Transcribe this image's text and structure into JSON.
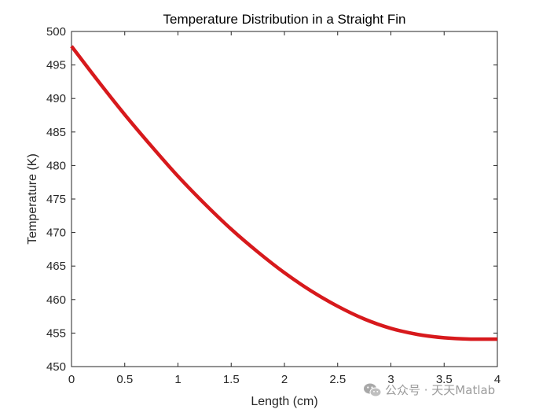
{
  "chart_data": {
    "type": "line",
    "title": "Temperature Distribution in a Straight Fin",
    "xlabel": "Length (cm)",
    "ylabel": "Temperature (K)",
    "xlim": [
      0,
      4
    ],
    "ylim": [
      450,
      500
    ],
    "xticks": [
      0,
      0.5,
      1,
      1.5,
      2,
      2.5,
      3,
      3.5,
      4
    ],
    "xtick_labels": [
      "0",
      "0.5",
      "1",
      "1.5",
      "2",
      "2.5",
      "3",
      "3.5",
      "4"
    ],
    "yticks": [
      450,
      455,
      460,
      465,
      470,
      475,
      480,
      485,
      490,
      495,
      500
    ],
    "ytick_labels": [
      "450",
      "455",
      "460",
      "465",
      "470",
      "475",
      "480",
      "485",
      "490",
      "495",
      "500"
    ],
    "grid": false,
    "series": [
      {
        "color": "#d7191c",
        "x": [
          0,
          0.25,
          0.5,
          0.75,
          1,
          1.25,
          1.5,
          1.75,
          2,
          2.25,
          2.5,
          2.75,
          3,
          3.25,
          3.5,
          3.75,
          4
        ],
        "y": [
          497.8,
          492.6,
          487.6,
          482.9,
          478.4,
          474.3,
          470.5,
          467.1,
          464.0,
          461.3,
          459.0,
          457.1,
          455.7,
          454.8,
          454.3,
          454.1,
          454.1
        ]
      }
    ]
  },
  "watermark": {
    "icon": "wechat-icon",
    "text": "公众号 · 天天Matlab"
  }
}
